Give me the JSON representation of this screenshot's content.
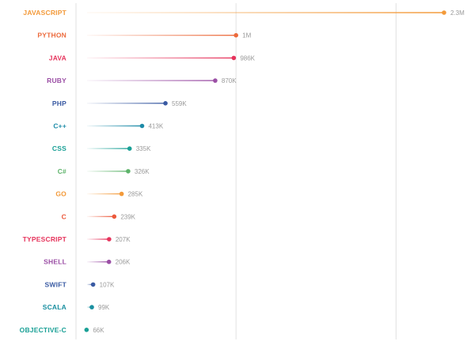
{
  "chart_data": {
    "type": "lollipop",
    "title": "",
    "xlabel": "",
    "ylabel": "",
    "xlim": [
      0,
      2300000
    ],
    "grid": true,
    "gridlines_at": [
      0,
      1000000,
      2000000
    ],
    "categories": [
      "JAVASCRIPT",
      "PYTHON",
      "JAVA",
      "RUBY",
      "PHP",
      "C++",
      "CSS",
      "C#",
      "GO",
      "C",
      "TYPESCRIPT",
      "SHELL",
      "SWIFT",
      "SCALA",
      "OBJECTIVE-C"
    ],
    "values": [
      2300000,
      1000000,
      986000,
      870000,
      559000,
      413000,
      335000,
      326000,
      285000,
      239000,
      207000,
      206000,
      107000,
      99000,
      66000
    ],
    "value_labels": [
      "2.3M",
      "1M",
      "986K",
      "870K",
      "559K",
      "413K",
      "335K",
      "326K",
      "285K",
      "239K",
      "207K",
      "206K",
      "107K",
      "99K",
      "66K"
    ],
    "colors": [
      "#f39a3a",
      "#ec6a3c",
      "#e6345c",
      "#9b4fa5",
      "#3a5ba3",
      "#1d8ba8",
      "#1aa096",
      "#5db36a",
      "#f39a3a",
      "#ec5a3c",
      "#e6345c",
      "#9b4fa5",
      "#3a5ba3",
      "#1a8fa0",
      "#1aa096"
    ]
  }
}
